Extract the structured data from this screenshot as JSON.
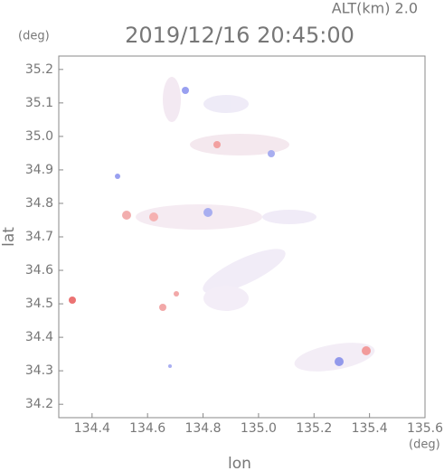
{
  "chart_data": {
    "type": "map",
    "title": "2019/12/16 20:45:00",
    "annotation": "ALT(km) 2.0",
    "x_label": "lon",
    "y_label": "lat",
    "x_unit": "(deg)",
    "y_unit": "(deg)",
    "xlim": [
      134.28,
      135.6
    ],
    "ylim": [
      34.16,
      35.24
    ],
    "xticks": [
      134.4,
      134.6,
      134.8,
      {
        "value": 135.0,
        "label": "135.0"
      },
      135.2,
      135.4,
      135.6
    ],
    "yticks": [
      34.2,
      34.3,
      34.4,
      34.5,
      34.6,
      34.7,
      34.8,
      34.9,
      {
        "value": 35.0,
        "label": "35.0"
      },
      35.1,
      35.2
    ]
  }
}
